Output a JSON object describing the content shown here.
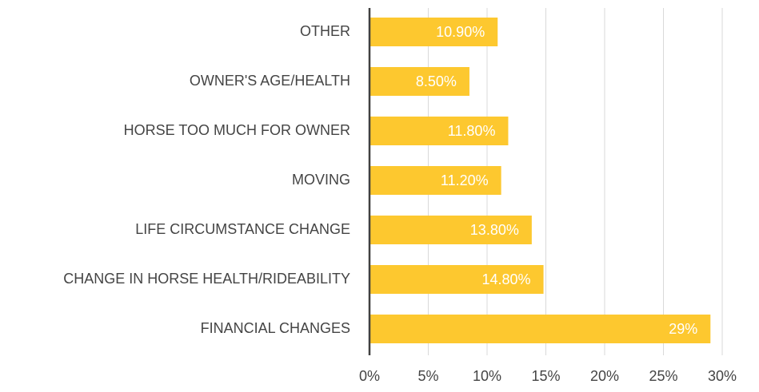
{
  "chart_data": {
    "type": "bar",
    "orientation": "horizontal",
    "categories": [
      "OTHER",
      "OWNER'S AGE/HEALTH",
      "HORSE TOO MUCH FOR OWNER",
      "MOVING",
      "LIFE CIRCUMSTANCE CHANGE",
      "CHANGE IN HORSE HEALTH/RIDEABILITY",
      "FINANCIAL CHANGES"
    ],
    "values": [
      10.9,
      8.5,
      11.8,
      11.2,
      13.8,
      14.8,
      29
    ],
    "value_labels": [
      "10.90%",
      "8.50%",
      "11.80%",
      "11.20%",
      "13.80%",
      "14.80%",
      "29%"
    ],
    "color": "#fdc82f",
    "xlim": [
      0,
      30
    ],
    "xticks": [
      {
        "value": 0,
        "label": "0%"
      },
      {
        "value": 5,
        "label": "5%"
      },
      {
        "value": 10,
        "label": "10%"
      },
      {
        "value": 15,
        "label": "15%"
      },
      {
        "value": 20,
        "label": "20%"
      },
      {
        "value": 25,
        "label": "25%"
      },
      {
        "value": 30,
        "label": "30%"
      }
    ],
    "grid": true
  }
}
